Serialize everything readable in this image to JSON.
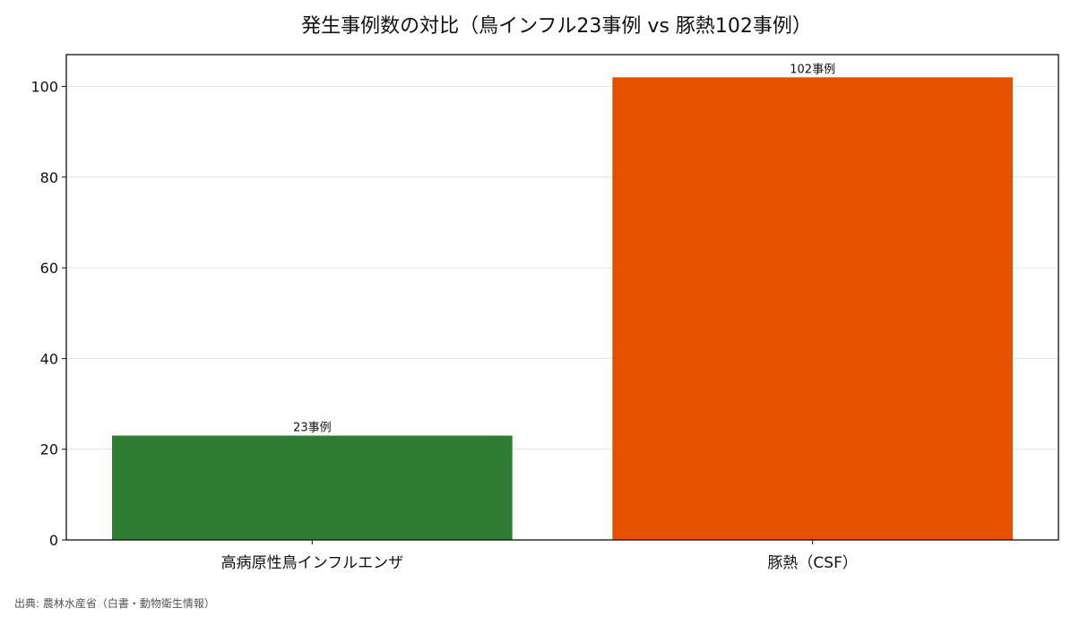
{
  "chart_data": {
    "type": "bar",
    "title": "発生事例数の対比（鳥インフル23事例 vs 豚熱102事例）",
    "categories": [
      "高病原性鳥インフルエンザ",
      "豚熱（CSF）"
    ],
    "values": [
      23,
      102
    ],
    "data_labels": [
      "23事例",
      "102事例"
    ],
    "colors": [
      "#2e7d32",
      "#e65100"
    ],
    "xlabel": "",
    "ylabel": "",
    "ylim": [
      0,
      107
    ],
    "yticks": [
      0,
      20,
      40,
      60,
      80,
      100
    ],
    "grid": true,
    "legend": "none"
  },
  "source": "出典: 農林水産省（白書・動物衛生情報）"
}
